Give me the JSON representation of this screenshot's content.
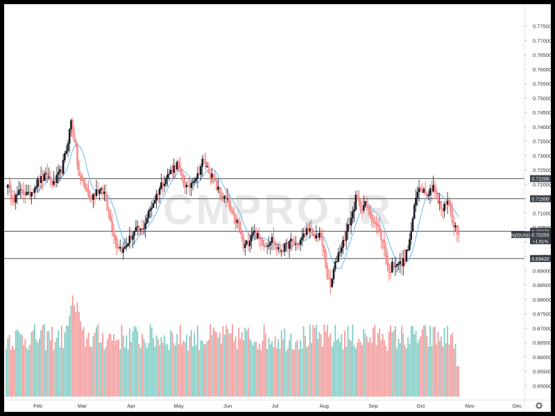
{
  "watermark": "CMPRO.IR",
  "colors": {
    "up": "#26a69a",
    "up_body": "#131722",
    "down": "#ef5350",
    "down_body": "#f7a8a8",
    "vol_up": "#7ecdc4",
    "vol_down": "#f49a9a",
    "ma": "#64b5f6",
    "level_line": "#505050",
    "price_tag_bg": "#3b4148"
  },
  "chart_data": {
    "type": "candlestick",
    "symbol": "NZDUSD",
    "ylim": [
      0.645,
      0.78
    ],
    "y_ticks": [
      "0.77500",
      "0.77000",
      "0.76500",
      "0.76000",
      "0.75500",
      "0.75000",
      "0.74500",
      "0.74000",
      "0.73500",
      "0.73000",
      "0.72500",
      "0.72000",
      "0.71500",
      "0.71000",
      "0.70500",
      "0.70000",
      "0.69500",
      "0.69000",
      "0.68500",
      "0.68000",
      "0.67500",
      "0.67000",
      "0.66500",
      "0.66000",
      "0.65500",
      "0.65000"
    ],
    "x_ticks": [
      {
        "label": "Feb",
        "day": 20
      },
      {
        "label": "Mar",
        "day": 48
      },
      {
        "label": "Apr",
        "day": 79
      },
      {
        "label": "May",
        "day": 109
      },
      {
        "label": "Jun",
        "day": 140
      },
      {
        "label": "Jul",
        "day": 170
      },
      {
        "label": "Aug",
        "day": 201
      },
      {
        "label": "Sep",
        "day": 232
      },
      {
        "label": "Oct",
        "day": 262
      },
      {
        "label": "Nov",
        "day": 293
      },
      {
        "label": "Dec",
        "day": 323
      }
    ],
    "horizontal_levels": [
      {
        "price": 0.722,
        "label": "0.72200"
      },
      {
        "price": 0.715,
        "label": "0.71500"
      },
      {
        "price": 0.7037,
        "label": "0.70370"
      },
      {
        "price": 0.6942,
        "label": "0.69420"
      }
    ],
    "last_price": {
      "symbol": "NZDUSD",
      "price": 0.70255,
      "label": "0.70255",
      "change": "+1.61%"
    },
    "anchors": [
      {
        "day": 0,
        "close": 0.72
      },
      {
        "day": 5,
        "close": 0.715
      },
      {
        "day": 10,
        "close": 0.718
      },
      {
        "day": 14,
        "close": 0.716
      },
      {
        "day": 20,
        "close": 0.721
      },
      {
        "day": 26,
        "close": 0.723
      },
      {
        "day": 30,
        "close": 0.72
      },
      {
        "day": 35,
        "close": 0.725
      },
      {
        "day": 38,
        "close": 0.732
      },
      {
        "day": 41,
        "close": 0.742
      },
      {
        "day": 43,
        "close": 0.736
      },
      {
        "day": 46,
        "close": 0.723
      },
      {
        "day": 50,
        "close": 0.719
      },
      {
        "day": 53,
        "close": 0.715
      },
      {
        "day": 57,
        "close": 0.718
      },
      {
        "day": 62,
        "close": 0.717
      },
      {
        "day": 66,
        "close": 0.707
      },
      {
        "day": 70,
        "close": 0.699
      },
      {
        "day": 74,
        "close": 0.697
      },
      {
        "day": 78,
        "close": 0.701
      },
      {
        "day": 82,
        "close": 0.704
      },
      {
        "day": 86,
        "close": 0.704
      },
      {
        "day": 90,
        "close": 0.71
      },
      {
        "day": 94,
        "close": 0.715
      },
      {
        "day": 98,
        "close": 0.72
      },
      {
        "day": 102,
        "close": 0.723
      },
      {
        "day": 106,
        "close": 0.726
      },
      {
        "day": 108,
        "close": 0.727
      },
      {
        "day": 112,
        "close": 0.721
      },
      {
        "day": 115,
        "close": 0.718
      },
      {
        "day": 118,
        "close": 0.722
      },
      {
        "day": 121,
        "close": 0.723
      },
      {
        "day": 124,
        "close": 0.728
      },
      {
        "day": 128,
        "close": 0.725
      },
      {
        "day": 132,
        "close": 0.72
      },
      {
        "day": 136,
        "close": 0.716
      },
      {
        "day": 140,
        "close": 0.714
      },
      {
        "day": 143,
        "close": 0.709
      },
      {
        "day": 147,
        "close": 0.706
      },
      {
        "day": 150,
        "close": 0.698
      },
      {
        "day": 153,
        "close": 0.7
      },
      {
        "day": 156,
        "close": 0.704
      },
      {
        "day": 160,
        "close": 0.701
      },
      {
        "day": 164,
        "close": 0.699
      },
      {
        "day": 168,
        "close": 0.701
      },
      {
        "day": 172,
        "close": 0.697
      },
      {
        "day": 176,
        "close": 0.698
      },
      {
        "day": 180,
        "close": 0.7
      },
      {
        "day": 184,
        "close": 0.699
      },
      {
        "day": 188,
        "close": 0.702
      },
      {
        "day": 191,
        "close": 0.705
      },
      {
        "day": 194,
        "close": 0.701
      },
      {
        "day": 198,
        "close": 0.703
      },
      {
        "day": 201,
        "close": 0.696
      },
      {
        "day": 203,
        "close": 0.688
      },
      {
        "day": 205,
        "close": 0.684
      },
      {
        "day": 207,
        "close": 0.69
      },
      {
        "day": 210,
        "close": 0.696
      },
      {
        "day": 213,
        "close": 0.7
      },
      {
        "day": 216,
        "close": 0.705
      },
      {
        "day": 219,
        "close": 0.71
      },
      {
        "day": 221,
        "close": 0.715
      },
      {
        "day": 224,
        "close": 0.712
      },
      {
        "day": 227,
        "close": 0.713
      },
      {
        "day": 231,
        "close": 0.709
      },
      {
        "day": 235,
        "close": 0.705
      },
      {
        "day": 238,
        "close": 0.7
      },
      {
        "day": 240,
        "close": 0.696
      },
      {
        "day": 242,
        "close": 0.689
      },
      {
        "day": 244,
        "close": 0.692
      },
      {
        "day": 247,
        "close": 0.693
      },
      {
        "day": 250,
        "close": 0.692
      },
      {
        "day": 253,
        "close": 0.696
      },
      {
        "day": 255,
        "close": 0.7
      },
      {
        "day": 257,
        "close": 0.708
      },
      {
        "day": 259,
        "close": 0.715
      },
      {
        "day": 261,
        "close": 0.719
      },
      {
        "day": 264,
        "close": 0.718
      },
      {
        "day": 267,
        "close": 0.717
      },
      {
        "day": 270,
        "close": 0.72
      },
      {
        "day": 273,
        "close": 0.714
      },
      {
        "day": 276,
        "close": 0.711
      },
      {
        "day": 279,
        "close": 0.715
      },
      {
        "day": 282,
        "close": 0.708
      },
      {
        "day": 285,
        "close": 0.703
      },
      {
        "day": 286,
        "close": 0.7025
      }
    ],
    "volume_profile": {
      "base": [
        0.45,
        0.72
      ],
      "spikes": [
        {
          "day": 42,
          "level": 1.0
        },
        {
          "day": 45,
          "level": 0.93
        },
        {
          "day": 238,
          "level": 0.62
        },
        {
          "day": 262,
          "level": 0.55
        }
      ]
    }
  }
}
